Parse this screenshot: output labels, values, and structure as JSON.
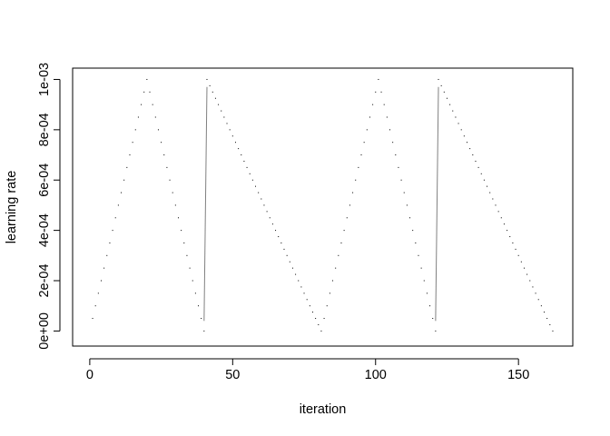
{
  "chart_data": {
    "type": "scatter",
    "title": "",
    "xlabel": "iteration",
    "ylabel": "learning rate",
    "xlim": [
      -6.0,
      169.0
    ],
    "ylim": [
      -6e-05,
      0.001045
    ],
    "x_ticks": [
      0,
      50,
      100,
      150
    ],
    "x_tick_labels": [
      "0",
      "50",
      "100",
      "150"
    ],
    "y_ticks": [
      0,
      0.0002,
      0.0004,
      0.0006,
      0.0008,
      0.001
    ],
    "y_tick_labels": [
      "0e+00",
      "2e-04",
      "4e-04",
      "6e-04",
      "8e-04",
      "1e-03"
    ],
    "grid": false,
    "legend": "none",
    "colors": {
      "points": "#000000",
      "jump_line": "#808080"
    },
    "points": [
      [
        1,
        5e-05
      ],
      [
        2,
        0.0001
      ],
      [
        3,
        0.00015
      ],
      [
        4,
        0.0002
      ],
      [
        5,
        0.00025
      ],
      [
        6,
        0.0003
      ],
      [
        7,
        0.00035
      ],
      [
        8,
        0.0004
      ],
      [
        9,
        0.00045
      ],
      [
        10,
        0.0005
      ],
      [
        11,
        0.00055
      ],
      [
        12,
        0.0006
      ],
      [
        13,
        0.00065
      ],
      [
        14,
        0.0007
      ],
      [
        15,
        0.00075
      ],
      [
        16,
        0.0008
      ],
      [
        17,
        0.00085
      ],
      [
        18,
        0.0009
      ],
      [
        19,
        0.00095
      ],
      [
        20,
        0.001
      ],
      [
        21,
        0.00095
      ],
      [
        22,
        0.0009
      ],
      [
        23,
        0.00085
      ],
      [
        24,
        0.0008
      ],
      [
        25,
        0.00075
      ],
      [
        26,
        0.0007
      ],
      [
        27,
        0.00065
      ],
      [
        28,
        0.0006
      ],
      [
        29,
        0.00055
      ],
      [
        30,
        0.0005
      ],
      [
        31,
        0.00045
      ],
      [
        32,
        0.0004
      ],
      [
        33,
        0.00035
      ],
      [
        34,
        0.0003
      ],
      [
        35,
        0.00025
      ],
      [
        36,
        0.0002
      ],
      [
        37,
        0.00015
      ],
      [
        38,
        0.0001
      ],
      [
        39,
        5e-05
      ],
      [
        40,
        0.0
      ],
      [
        41,
        0.001
      ],
      [
        42,
        0.000975
      ],
      [
        43,
        0.00095
      ],
      [
        44,
        0.000925
      ],
      [
        45,
        0.0009
      ],
      [
        46,
        0.000875
      ],
      [
        47,
        0.00085
      ],
      [
        48,
        0.000825
      ],
      [
        49,
        0.0008
      ],
      [
        50,
        0.000775
      ],
      [
        51,
        0.00075
      ],
      [
        52,
        0.000725
      ],
      [
        53,
        0.0007
      ],
      [
        54,
        0.000675
      ],
      [
        55,
        0.00065
      ],
      [
        56,
        0.000625
      ],
      [
        57,
        0.0006
      ],
      [
        58,
        0.000575
      ],
      [
        59,
        0.00055
      ],
      [
        60,
        0.000525
      ],
      [
        61,
        0.0005
      ],
      [
        62,
        0.000475
      ],
      [
        63,
        0.00045
      ],
      [
        64,
        0.000425
      ],
      [
        65,
        0.0004
      ],
      [
        66,
        0.000375
      ],
      [
        67,
        0.00035
      ],
      [
        68,
        0.000325
      ],
      [
        69,
        0.0003
      ],
      [
        70,
        0.000275
      ],
      [
        71,
        0.00025
      ],
      [
        72,
        0.000225
      ],
      [
        73,
        0.0002
      ],
      [
        74,
        0.000175
      ],
      [
        75,
        0.00015
      ],
      [
        76,
        0.000125
      ],
      [
        77,
        0.0001
      ],
      [
        78,
        7.5e-05
      ],
      [
        79,
        5e-05
      ],
      [
        80,
        2.5e-05
      ],
      [
        81,
        0.0
      ],
      [
        82,
        5e-05
      ],
      [
        83,
        0.0001
      ],
      [
        84,
        0.00015
      ],
      [
        85,
        0.0002
      ],
      [
        86,
        0.00025
      ],
      [
        87,
        0.0003
      ],
      [
        88,
        0.00035
      ],
      [
        89,
        0.0004
      ],
      [
        90,
        0.00045
      ],
      [
        91,
        0.0005
      ],
      [
        92,
        0.00055
      ],
      [
        93,
        0.0006
      ],
      [
        94,
        0.00065
      ],
      [
        95,
        0.0007
      ],
      [
        96,
        0.00075
      ],
      [
        97,
        0.0008
      ],
      [
        98,
        0.00085
      ],
      [
        99,
        0.0009
      ],
      [
        100,
        0.00095
      ],
      [
        101,
        0.001
      ],
      [
        102,
        0.00095
      ],
      [
        103,
        0.0009
      ],
      [
        104,
        0.00085
      ],
      [
        105,
        0.0008
      ],
      [
        106,
        0.00075
      ],
      [
        107,
        0.0007
      ],
      [
        108,
        0.00065
      ],
      [
        109,
        0.0006
      ],
      [
        110,
        0.00055
      ],
      [
        111,
        0.0005
      ],
      [
        112,
        0.00045
      ],
      [
        113,
        0.0004
      ],
      [
        114,
        0.00035
      ],
      [
        115,
        0.0003
      ],
      [
        116,
        0.00025
      ],
      [
        117,
        0.0002
      ],
      [
        118,
        0.00015
      ],
      [
        119,
        0.0001
      ],
      [
        120,
        5e-05
      ],
      [
        121,
        0.0
      ],
      [
        122,
        0.001
      ],
      [
        123,
        0.000975
      ],
      [
        124,
        0.00095
      ],
      [
        125,
        0.000925
      ],
      [
        126,
        0.0009
      ],
      [
        127,
        0.000875
      ],
      [
        128,
        0.00085
      ],
      [
        129,
        0.000825
      ],
      [
        130,
        0.0008
      ],
      [
        131,
        0.000775
      ],
      [
        132,
        0.00075
      ],
      [
        133,
        0.000725
      ],
      [
        134,
        0.0007
      ],
      [
        135,
        0.000675
      ],
      [
        136,
        0.00065
      ],
      [
        137,
        0.000625
      ],
      [
        138,
        0.0006
      ],
      [
        139,
        0.000575
      ],
      [
        140,
        0.00055
      ],
      [
        141,
        0.000525
      ],
      [
        142,
        0.0005
      ],
      [
        143,
        0.000475
      ],
      [
        144,
        0.00045
      ],
      [
        145,
        0.000425
      ],
      [
        146,
        0.0004
      ],
      [
        147,
        0.000375
      ],
      [
        148,
        0.00035
      ],
      [
        149,
        0.000325
      ],
      [
        150,
        0.0003
      ],
      [
        151,
        0.000275
      ],
      [
        152,
        0.00025
      ],
      [
        153,
        0.000225
      ],
      [
        154,
        0.0002
      ],
      [
        155,
        0.000175
      ],
      [
        156,
        0.00015
      ],
      [
        157,
        0.000125
      ],
      [
        158,
        0.0001
      ],
      [
        159,
        7.5e-05
      ],
      [
        160,
        5e-05
      ],
      [
        161,
        2.5e-05
      ],
      [
        162,
        0.0
      ]
    ],
    "jump_lines": [
      [
        [
          40,
          4e-05
        ],
        [
          41,
          0.00097
        ]
      ],
      [
        [
          121,
          4e-05
        ],
        [
          122,
          0.00097
        ]
      ]
    ]
  }
}
